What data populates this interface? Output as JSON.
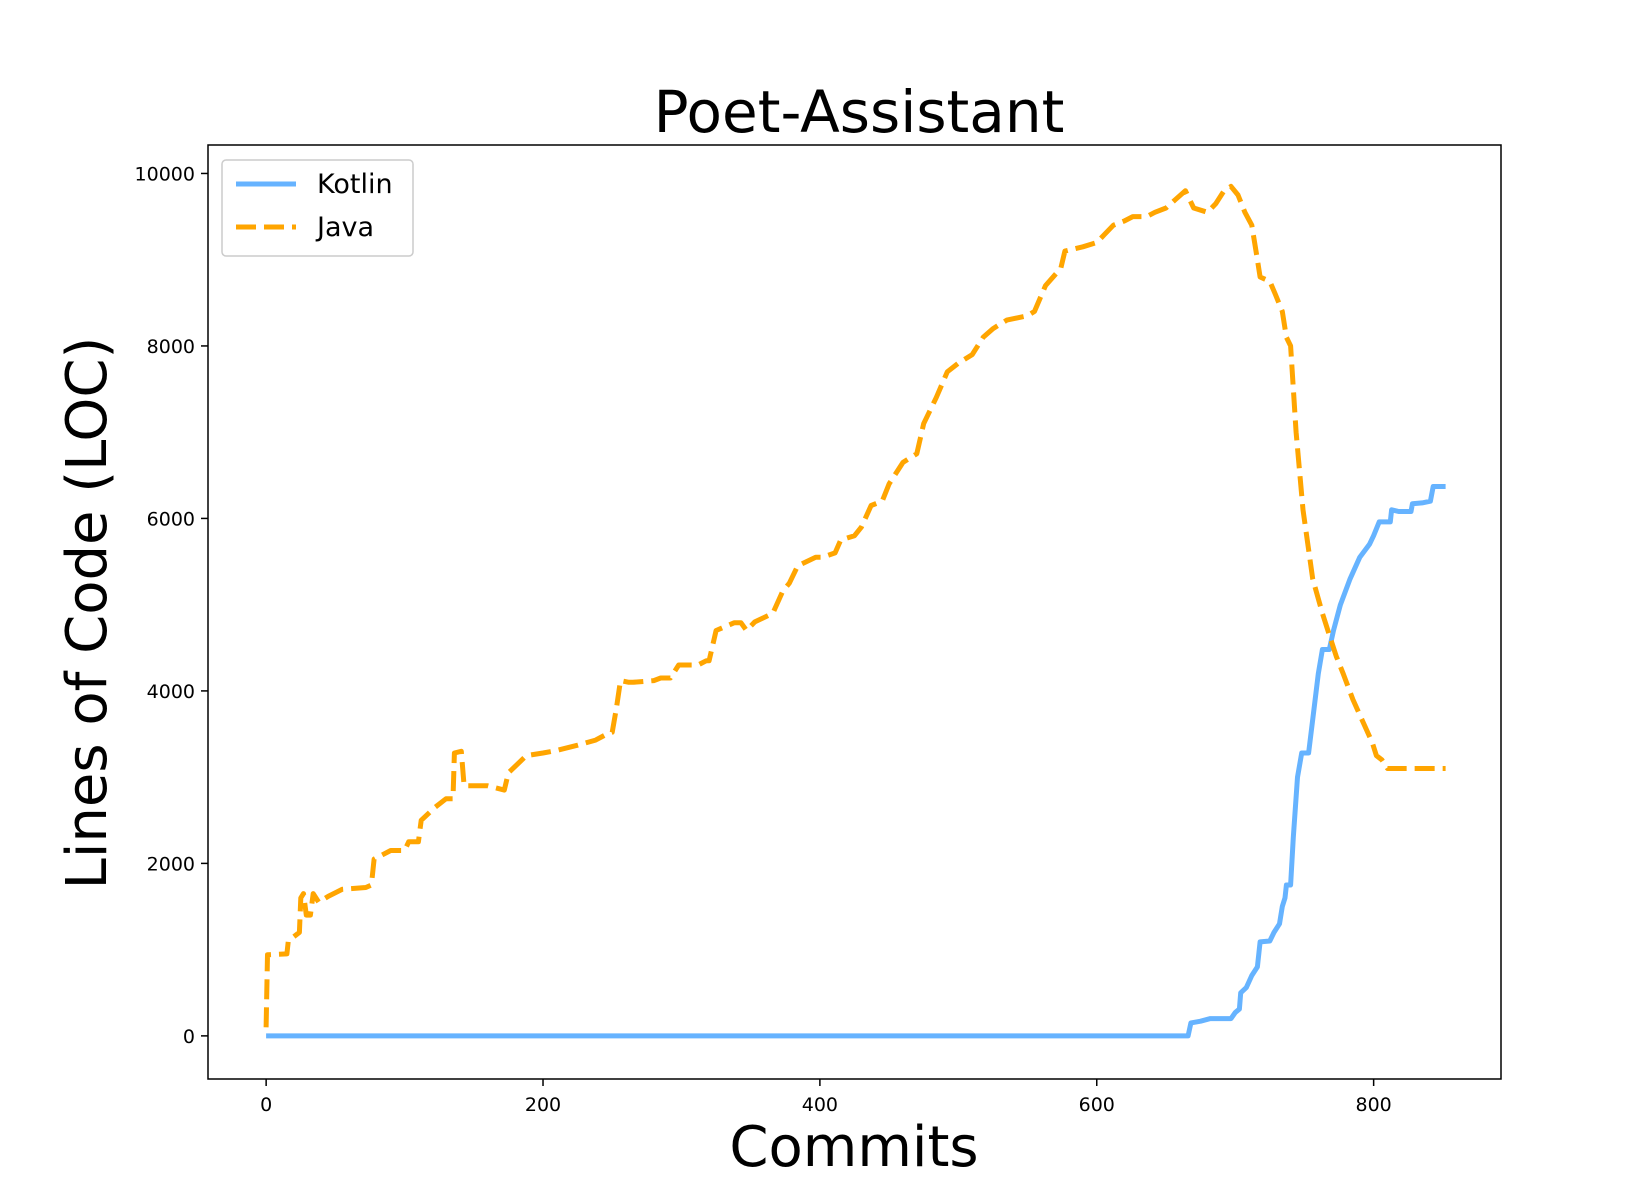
{
  "chart_data": {
    "type": "line",
    "title": "Poet-Assistant",
    "xlabel": "Commits",
    "ylabel": "Lines of Code (LOC)",
    "xlim": [
      -42,
      892
    ],
    "ylim": [
      -500,
      10330
    ],
    "xticks": [
      0,
      200,
      400,
      600,
      800
    ],
    "yticks": [
      0,
      2000,
      4000,
      6000,
      8000,
      10000
    ],
    "grid": false,
    "legend_position": "top-left",
    "series": [
      {
        "name": "Kotlin",
        "color": "#66b3ff",
        "style": "solid",
        "points": [
          [
            0,
            0
          ],
          [
            666,
            0
          ],
          [
            668,
            150
          ],
          [
            675,
            170
          ],
          [
            682,
            200
          ],
          [
            697,
            200
          ],
          [
            700,
            270
          ],
          [
            703,
            310
          ],
          [
            704,
            500
          ],
          [
            708,
            560
          ],
          [
            712,
            700
          ],
          [
            716,
            800
          ],
          [
            718,
            1090
          ],
          [
            725,
            1100
          ],
          [
            728,
            1200
          ],
          [
            732,
            1300
          ],
          [
            734,
            1500
          ],
          [
            736,
            1600
          ],
          [
            737,
            1750
          ],
          [
            740,
            1750
          ],
          [
            742,
            2300
          ],
          [
            745,
            3000
          ],
          [
            748,
            3280
          ],
          [
            753,
            3280
          ],
          [
            757,
            3800
          ],
          [
            760,
            4200
          ],
          [
            763,
            4480
          ],
          [
            768,
            4480
          ],
          [
            771,
            4700
          ],
          [
            776,
            5000
          ],
          [
            783,
            5300
          ],
          [
            790,
            5550
          ],
          [
            797,
            5700
          ],
          [
            800,
            5800
          ],
          [
            804,
            5960
          ],
          [
            812,
            5960
          ],
          [
            813,
            6100
          ],
          [
            818,
            6080
          ],
          [
            827,
            6080
          ],
          [
            828,
            6170
          ],
          [
            835,
            6180
          ],
          [
            841,
            6200
          ],
          [
            843,
            6370
          ],
          [
            852,
            6370
          ]
        ]
      },
      {
        "name": "Java",
        "color": "#ffa500",
        "style": "dashed",
        "points": [
          [
            0,
            100
          ],
          [
            1,
            940
          ],
          [
            15,
            950
          ],
          [
            16,
            1100
          ],
          [
            24,
            1200
          ],
          [
            25,
            1600
          ],
          [
            27,
            1650
          ],
          [
            29,
            1400
          ],
          [
            32,
            1400
          ],
          [
            34,
            1650
          ],
          [
            38,
            1550
          ],
          [
            45,
            1620
          ],
          [
            55,
            1700
          ],
          [
            72,
            1720
          ],
          [
            76,
            1750
          ],
          [
            78,
            2050
          ],
          [
            90,
            2150
          ],
          [
            100,
            2150
          ],
          [
            103,
            2250
          ],
          [
            110,
            2250
          ],
          [
            112,
            2500
          ],
          [
            122,
            2650
          ],
          [
            130,
            2750
          ],
          [
            135,
            2750
          ],
          [
            136,
            3280
          ],
          [
            141,
            3300
          ],
          [
            143,
            2900
          ],
          [
            160,
            2900
          ],
          [
            172,
            2850
          ],
          [
            175,
            3050
          ],
          [
            188,
            3250
          ],
          [
            200,
            3280
          ],
          [
            210,
            3310
          ],
          [
            225,
            3370
          ],
          [
            238,
            3430
          ],
          [
            245,
            3490
          ],
          [
            250,
            3520
          ],
          [
            253,
            3800
          ],
          [
            256,
            4120
          ],
          [
            262,
            4100
          ],
          [
            265,
            4100
          ],
          [
            280,
            4120
          ],
          [
            285,
            4150
          ],
          [
            292,
            4150
          ],
          [
            298,
            4300
          ],
          [
            312,
            4300
          ],
          [
            318,
            4350
          ],
          [
            320,
            4350
          ],
          [
            325,
            4700
          ],
          [
            338,
            4790
          ],
          [
            343,
            4790
          ],
          [
            347,
            4700
          ],
          [
            353,
            4800
          ],
          [
            366,
            4900
          ],
          [
            373,
            5150
          ],
          [
            378,
            5250
          ],
          [
            384,
            5450
          ],
          [
            397,
            5550
          ],
          [
            402,
            5550
          ],
          [
            411,
            5600
          ],
          [
            415,
            5750
          ],
          [
            425,
            5800
          ],
          [
            430,
            5900
          ],
          [
            437,
            6150
          ],
          [
            445,
            6200
          ],
          [
            450,
            6400
          ],
          [
            460,
            6650
          ],
          [
            470,
            6750
          ],
          [
            475,
            7100
          ],
          [
            484,
            7400
          ],
          [
            492,
            7700
          ],
          [
            500,
            7800
          ],
          [
            510,
            7900
          ],
          [
            518,
            8100
          ],
          [
            525,
            8200
          ],
          [
            535,
            8300
          ],
          [
            550,
            8350
          ],
          [
            555,
            8400
          ],
          [
            563,
            8700
          ],
          [
            574,
            8900
          ],
          [
            577,
            9100
          ],
          [
            590,
            9150
          ],
          [
            600,
            9200
          ],
          [
            606,
            9300
          ],
          [
            612,
            9400
          ],
          [
            620,
            9450
          ],
          [
            626,
            9500
          ],
          [
            636,
            9500
          ],
          [
            642,
            9550
          ],
          [
            650,
            9600
          ],
          [
            657,
            9700
          ],
          [
            664,
            9800
          ],
          [
            670,
            9600
          ],
          [
            680,
            9550
          ],
          [
            686,
            9650
          ],
          [
            692,
            9800
          ],
          [
            697,
            9850
          ],
          [
            702,
            9750
          ],
          [
            707,
            9550
          ],
          [
            712,
            9400
          ],
          [
            716,
            9000
          ],
          [
            718,
            8800
          ],
          [
            725,
            8750
          ],
          [
            729,
            8600
          ],
          [
            734,
            8400
          ],
          [
            737,
            8100
          ],
          [
            740,
            8000
          ],
          [
            744,
            7000
          ],
          [
            749,
            6100
          ],
          [
            756,
            5300
          ],
          [
            763,
            4900
          ],
          [
            768,
            4650
          ],
          [
            773,
            4400
          ],
          [
            778,
            4200
          ],
          [
            785,
            3900
          ],
          [
            792,
            3650
          ],
          [
            799,
            3400
          ],
          [
            802,
            3250
          ],
          [
            806,
            3200
          ],
          [
            810,
            3100
          ],
          [
            852,
            3100
          ]
        ]
      }
    ]
  }
}
